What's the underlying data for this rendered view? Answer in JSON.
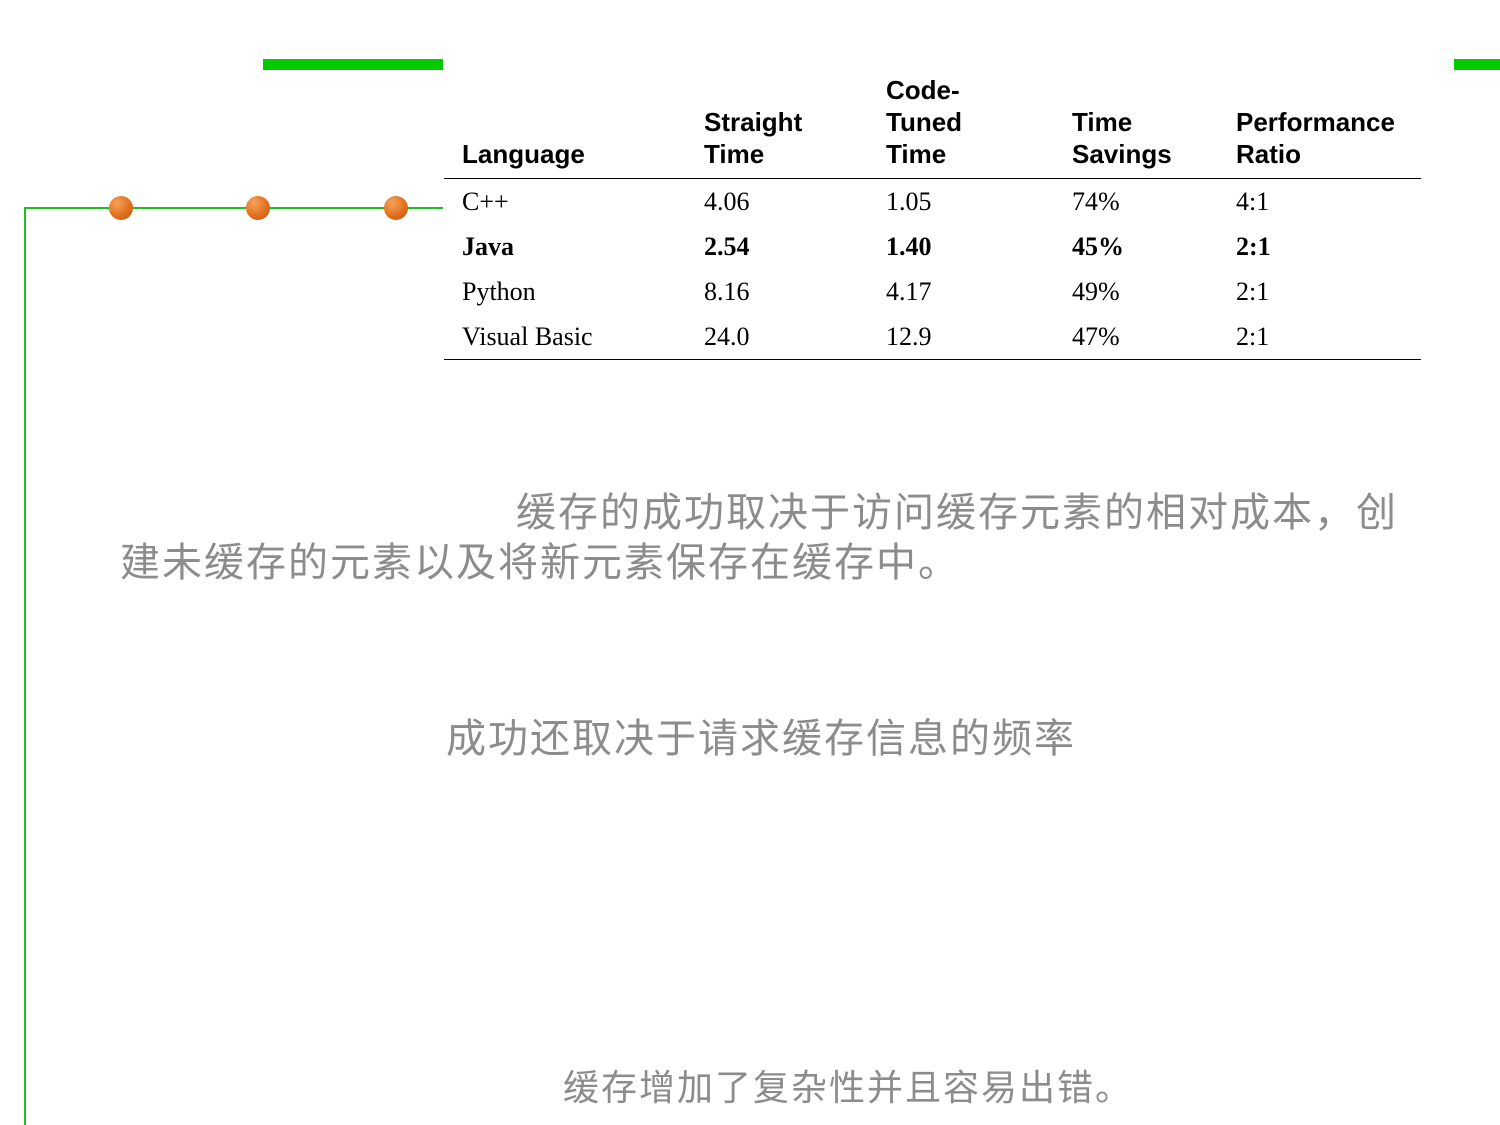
{
  "table": {
    "headers": [
      [
        "Language"
      ],
      [
        "Straight",
        "Time"
      ],
      [
        "Code-",
        "Tuned",
        "Time"
      ],
      [
        "Time",
        "Savings"
      ],
      [
        "Performance",
        "Ratio"
      ]
    ],
    "rows": [
      {
        "language": "C++",
        "straight_time": "4.06",
        "code_tuned_time": "1.05",
        "time_savings": "74%",
        "performance_ratio": "4:1"
      },
      {
        "language": "Java",
        "straight_time": "2.54",
        "code_tuned_time": "1.40",
        "time_savings": "45%",
        "performance_ratio": "2:1"
      },
      {
        "language": "Python",
        "straight_time": "8.16",
        "code_tuned_time": "4.17",
        "time_savings": "49%",
        "performance_ratio": "2:1"
      },
      {
        "language": "Visual Basic",
        "straight_time": "24.0",
        "code_tuned_time": "12.9",
        "time_savings": "47%",
        "performance_ratio": "2:1"
      }
    ]
  },
  "paragraphs": {
    "p1": "缓存的成功取决于访问缓存元素的相对成本，创建未缓存的元素以及将新元素保存在缓存中。",
    "p2": "成功还取决于请求缓存信息的频率",
    "p3": "缓存增加了复杂性并且容易出错。"
  },
  "colors": {
    "accent_green": "#00cc00",
    "line_green": "#1fbf1f",
    "dot_orange": "#e0701e",
    "text_gray": "#8c8c8c"
  }
}
